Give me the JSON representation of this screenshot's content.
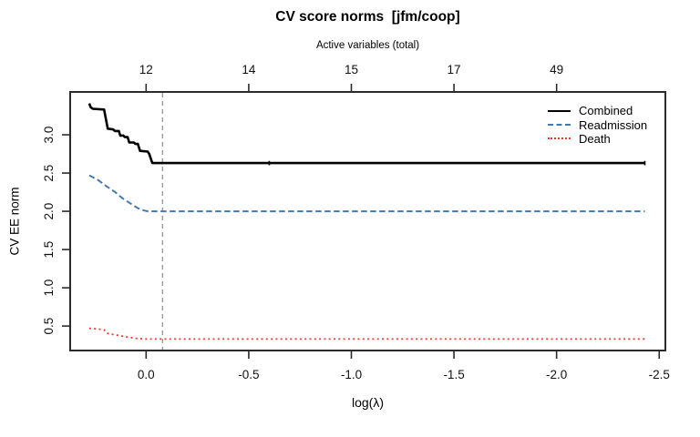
{
  "chart_data": {
    "type": "line",
    "title": "CV score norms  [jfm/coop]",
    "top_axis": {
      "label": "Active variables (total)",
      "ticks": [
        {
          "at": 0.0,
          "label": "12"
        },
        {
          "at": -0.5,
          "label": "14"
        },
        {
          "at": -1.0,
          "label": "15"
        },
        {
          "at": -1.5,
          "label": "17"
        },
        {
          "at": -2.0,
          "label": "49"
        }
      ]
    },
    "x_axis": {
      "label": "log(λ)",
      "lim": [
        0.37,
        -2.53
      ],
      "reversed": true,
      "ticks": [
        {
          "at": 0.0,
          "label": "0.0"
        },
        {
          "at": -0.5,
          "label": "-0.5"
        },
        {
          "at": -1.0,
          "label": "-1.0"
        },
        {
          "at": -1.5,
          "label": "-1.5"
        },
        {
          "at": -2.0,
          "label": "-2.0"
        },
        {
          "at": -2.5,
          "label": "-2.5"
        }
      ]
    },
    "y_axis": {
      "label": "CV EE norm",
      "lim": [
        0.18,
        3.56
      ],
      "ticks": [
        {
          "at": 0.5,
          "label": "0.5"
        },
        {
          "at": 1.0,
          "label": "1.0"
        },
        {
          "at": 1.5,
          "label": "1.5"
        },
        {
          "at": 2.0,
          "label": "2.0"
        },
        {
          "at": 2.5,
          "label": "2.5"
        },
        {
          "at": 3.0,
          "label": "3.0"
        }
      ]
    },
    "reference_line": {
      "x": -0.08,
      "style": "dashed",
      "color": "#9a9a9a"
    },
    "series": [
      {
        "name": "Combined",
        "color": "#000000",
        "style": "solid",
        "points": [
          [
            0.277,
            3.41
          ],
          [
            0.27,
            3.36
          ],
          [
            0.26,
            3.34
          ],
          [
            0.205,
            3.33
          ],
          [
            0.187,
            3.08
          ],
          [
            0.16,
            3.07
          ],
          [
            0.152,
            3.05
          ],
          [
            0.133,
            3.05
          ],
          [
            0.126,
            2.99
          ],
          [
            0.11,
            2.99
          ],
          [
            0.104,
            2.97
          ],
          [
            0.09,
            2.97
          ],
          [
            0.082,
            2.9
          ],
          [
            0.06,
            2.9
          ],
          [
            0.052,
            2.88
          ],
          [
            0.04,
            2.88
          ],
          [
            0.03,
            2.79
          ],
          [
            -0.008,
            2.78
          ],
          [
            -0.015,
            2.75
          ],
          [
            -0.03,
            2.63
          ],
          [
            -2.43,
            2.63
          ]
        ]
      },
      {
        "name": "Readmission",
        "color": "#4379ae",
        "style": "dashed",
        "points": [
          [
            0.277,
            2.47
          ],
          [
            0.235,
            2.41
          ],
          [
            0.195,
            2.33
          ],
          [
            0.15,
            2.25
          ],
          [
            0.115,
            2.17
          ],
          [
            0.075,
            2.1
          ],
          [
            0.04,
            2.04
          ],
          [
            0.01,
            2.01
          ],
          [
            -0.01,
            2.0
          ],
          [
            -2.43,
            2.0
          ]
        ]
      },
      {
        "name": "Death",
        "color": "#ee3a2c",
        "style": "dotted",
        "points": [
          [
            0.277,
            0.47
          ],
          [
            0.23,
            0.46
          ],
          [
            0.205,
            0.45
          ],
          [
            0.185,
            0.4
          ],
          [
            0.15,
            0.385
          ],
          [
            0.1,
            0.36
          ],
          [
            0.05,
            0.34
          ],
          [
            0.0,
            0.33
          ],
          [
            -2.43,
            0.33
          ]
        ]
      }
    ],
    "line_markers": {
      "series": "Combined",
      "xs": [
        -0.6,
        -2.43
      ],
      "y": 2.63
    },
    "legend": {
      "position": "top-right",
      "entries": [
        "Combined",
        "Readmission",
        "Death"
      ]
    }
  }
}
